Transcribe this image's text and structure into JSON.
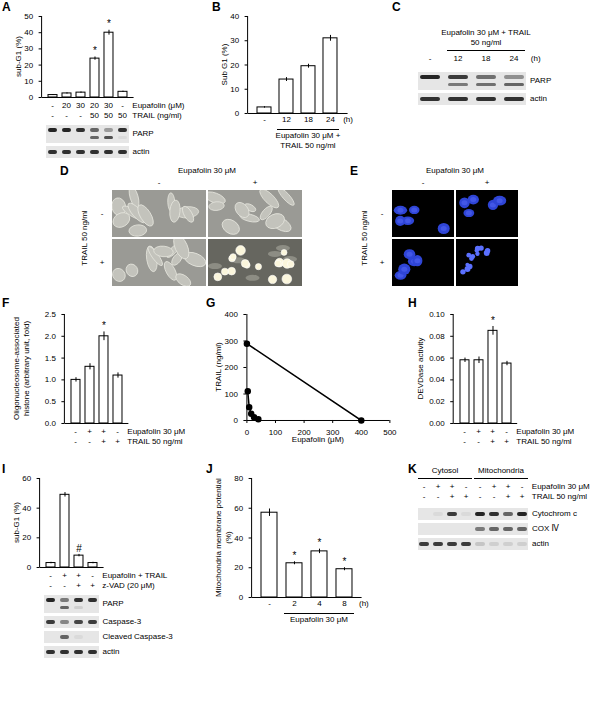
{
  "chart_data": [
    {
      "panel": "A",
      "type": "bar",
      "ylabel": "sub-G1 (%)",
      "values": [
        1.5,
        2.5,
        3,
        24,
        40,
        3.5
      ],
      "error": [
        0.3,
        0.4,
        0.4,
        1,
        1.5,
        0.4
      ],
      "significance": [
        null,
        null,
        null,
        "*",
        "*",
        null
      ],
      "color": "#ffffff",
      "ylim": [
        0,
        50
      ],
      "yticks": [
        0,
        10,
        20,
        30,
        40,
        50
      ],
      "conditions": [
        {
          "label": "Eupafolin (μM)",
          "values": [
            "-",
            "20",
            "30",
            "20",
            "30",
            "-"
          ]
        },
        {
          "label": "TRAIL (ng/ml)",
          "values": [
            "-",
            "-",
            "-",
            "50",
            "50",
            "50"
          ]
        }
      ]
    },
    {
      "panel": "B",
      "type": "bar",
      "ylabel": "Sub G1 (%)",
      "categories": [
        "-",
        "12",
        "18",
        "24"
      ],
      "xlabel": "(h)",
      "values": [
        2.5,
        14,
        19.5,
        31
      ],
      "error": [
        0.3,
        0.8,
        0.8,
        1.2
      ],
      "color": "#ffffff",
      "ylim": [
        0,
        40
      ],
      "yticks": [
        0,
        10,
        20,
        30,
        40
      ],
      "bracket": {
        "from": 1,
        "to": 3,
        "label": "Eupafolin 30 μM + TRAIL 50 ng/ml"
      }
    },
    {
      "panel": "F",
      "type": "bar",
      "ylabel": "Oligonucleosome-associated histone (arbitrary unit, fold)",
      "values": [
        1.0,
        1.3,
        2.0,
        1.1
      ],
      "error": [
        0.05,
        0.07,
        0.1,
        0.06
      ],
      "significance": [
        null,
        null,
        "*",
        null
      ],
      "color": "#ffffff",
      "ylim": [
        0,
        2.5
      ],
      "yticks": [
        {
          "value": 0,
          "label": "0.0"
        },
        0.5,
        {
          "value": 1,
          "label": "1.0"
        },
        1.5,
        {
          "value": 2,
          "label": "2.0"
        },
        2.5
      ],
      "conditions": [
        {
          "label": "Eupafolin 30 μM",
          "values": [
            "-",
            "+",
            "+",
            "-"
          ]
        },
        {
          "label": "TRAIL 50 ng/ml",
          "values": [
            "-",
            "-",
            "+",
            "+"
          ]
        }
      ]
    },
    {
      "panel": "G",
      "type": "line",
      "xlabel": "Eupafolin (μM)",
      "ylabel": "TRAIL (ng/ml)",
      "xlim": [
        0,
        500
      ],
      "xticks": [
        0,
        100,
        200,
        300,
        400,
        500
      ],
      "ylim": [
        0,
        400
      ],
      "yticks": [
        0,
        100,
        200,
        300,
        400
      ],
      "series": [
        {
          "x": [
            0,
            400
          ],
          "values": [
            290,
            0
          ],
          "color": "#000000",
          "marker": "circle"
        },
        {
          "x": [
            3,
            8,
            15,
            25,
            40
          ],
          "values": [
            110,
            50,
            25,
            12,
            5
          ],
          "color": "#000000",
          "marker": "circle"
        }
      ]
    },
    {
      "panel": "H",
      "type": "bar",
      "ylabel": "DEVDase activity",
      "values": [
        0.058,
        0.058,
        0.085,
        0.055
      ],
      "error": [
        0.002,
        0.003,
        0.004,
        0.002
      ],
      "significance": [
        null,
        null,
        "*",
        null
      ],
      "color": "#ffffff",
      "ylim": [
        0,
        0.1
      ],
      "yticks": [
        {
          "value": 0,
          "label": "0.00"
        },
        {
          "value": 0.02,
          "label": "0.02"
        },
        {
          "value": 0.04,
          "label": "0.04"
        },
        {
          "value": 0.06,
          "label": "0.06"
        },
        {
          "value": 0.08,
          "label": "0.08"
        },
        {
          "value": 0.1,
          "label": "0.10"
        }
      ],
      "conditions": [
        {
          "label": "Eupafolin 30 μM",
          "values": [
            "-",
            "+",
            "+",
            "-"
          ]
        },
        {
          "label": "TRAIL 50 ng/ml",
          "values": [
            "-",
            "-",
            "+",
            "+"
          ]
        }
      ]
    },
    {
      "panel": "I",
      "type": "bar",
      "ylabel": "sub-G1 (%)",
      "values": [
        3,
        49,
        8,
        3
      ],
      "error": [
        0.5,
        1.5,
        0.8,
        0.5
      ],
      "significance": [
        null,
        null,
        "#",
        null
      ],
      "color": "#ffffff",
      "ylim": [
        0,
        60
      ],
      "yticks": [
        0,
        20,
        40,
        60
      ],
      "conditions": [
        {
          "label": "Eupafolin + TRAIL",
          "values": [
            "-",
            "+",
            "+",
            "-"
          ]
        },
        {
          "label": "z-VAD (20 μM)",
          "values": [
            "-",
            "-",
            "+",
            "+"
          ]
        }
      ]
    },
    {
      "panel": "J",
      "type": "bar",
      "ylabel": "Mitochondria membrane potential (%)",
      "categories": [
        "-",
        "2",
        "4",
        "8"
      ],
      "xlabel": "(h)",
      "values": [
        57,
        23,
        31,
        19
      ],
      "error": [
        2.5,
        1,
        1.5,
        1
      ],
      "significance": [
        null,
        "*",
        "*",
        "*"
      ],
      "color": "#ffffff",
      "ylim": [
        0,
        80
      ],
      "yticks": [
        0,
        20,
        40,
        60,
        80
      ],
      "bracket": {
        "from": 1,
        "to": 3,
        "label": "Eupafolin 30 μM"
      }
    }
  ],
  "blots": [
    {
      "panel": "A",
      "rows": [
        {
          "label": "PARP",
          "intensity": [
            0.9,
            0.9,
            0.85,
            0.6,
            0.35,
            0.85
          ],
          "cleaved": [
            0,
            0,
            0,
            0.6,
            0.7,
            0.05
          ]
        },
        {
          "label": "actin",
          "intensity": [
            0.85,
            0.85,
            0.85,
            0.85,
            0.85,
            0.85
          ]
        }
      ]
    },
    {
      "panel": "C",
      "bracket": {
        "from": 1,
        "to": 3,
        "label": "Eupafolin 30 μM + TRAIL 50 ng/ml"
      },
      "lanes": [
        "-",
        "12",
        "18",
        "24"
      ],
      "lane_unit": "(h)",
      "rows": [
        {
          "label": "PARP",
          "intensity": [
            0.9,
            0.8,
            0.55,
            0.4
          ],
          "cleaved": [
            0,
            0.5,
            0.55,
            0.6
          ]
        },
        {
          "label": "actin",
          "intensity": [
            0.85,
            0.85,
            0.85,
            0.85
          ]
        }
      ]
    },
    {
      "panel": "I",
      "rows": [
        {
          "label": "PARP",
          "intensity": [
            0.9,
            0.5,
            0.85,
            0.85
          ],
          "cleaved": [
            0,
            0.6,
            0.1,
            0
          ]
        },
        {
          "label": "Caspase-3",
          "intensity": [
            0.8,
            0.45,
            0.75,
            0.8
          ]
        },
        {
          "label": "Cleaved Caspase-3",
          "intensity": [
            0,
            0.6,
            0.05,
            0
          ]
        },
        {
          "label": "actin",
          "intensity": [
            0.85,
            0.85,
            0.85,
            0.85
          ]
        }
      ]
    },
    {
      "panel": "K",
      "groups": [
        {
          "label": "Cytosol",
          "from": 0,
          "to": 3
        },
        {
          "label": "Mitochondria",
          "from": 4,
          "to": 7
        }
      ],
      "conditions": [
        {
          "label": "Eupafolin 30 μM",
          "values": [
            "-",
            "+",
            "+",
            "-",
            "-",
            "+",
            "+",
            "-"
          ]
        },
        {
          "label": "TRAIL 50 ng/ml",
          "values": [
            "-",
            "-",
            "+",
            "+",
            "-",
            "-",
            "+",
            "+"
          ]
        }
      ],
      "rows": [
        {
          "label": "Cytochrom c",
          "intensity": [
            0,
            0.05,
            0.8,
            0.05,
            0.9,
            0.85,
            0.6,
            0.9
          ]
        },
        {
          "label": "COX Ⅳ",
          "intensity": [
            0,
            0,
            0,
            0,
            0.5,
            0.6,
            0.6,
            0.6
          ]
        },
        {
          "label": "actin",
          "intensity": [
            0.8,
            0.8,
            0.8,
            0.8,
            0.15,
            0.1,
            0.1,
            0.1
          ]
        }
      ]
    }
  ],
  "images": [
    {
      "panel": "D",
      "column_header": "Eupafolin 30 μM",
      "columns": [
        "-",
        "+"
      ],
      "row_header": "TRAIL 50 ng/ml",
      "rows": [
        "-",
        "+"
      ]
    },
    {
      "panel": "E",
      "column_header": "Eupafolin 30 μM",
      "columns": [
        "-",
        "+"
      ],
      "row_header": "TRAIL 50 ng/ml",
      "rows": [
        "-",
        "+"
      ]
    }
  ]
}
